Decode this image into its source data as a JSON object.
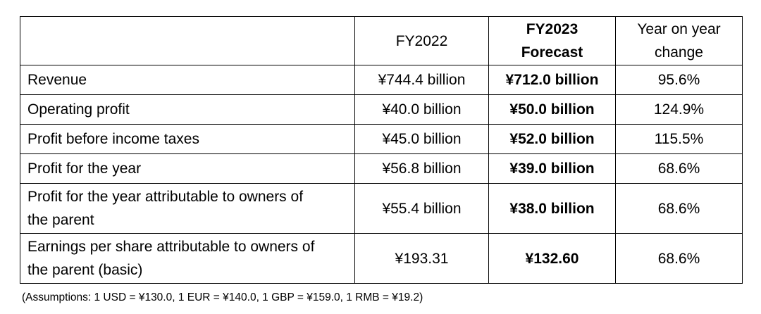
{
  "table": {
    "headers": {
      "label": "",
      "fy2022": "FY2022",
      "fy2023_line1": "FY2023",
      "fy2023_line2": "Forecast",
      "yoy_line1": "Year on year",
      "yoy_line2": "change"
    },
    "rows": [
      {
        "label": "Revenue",
        "fy2022": "¥744.4 billion",
        "fy2023": "¥712.0 billion",
        "yoy": "95.6%"
      },
      {
        "label": "Operating profit",
        "fy2022": "¥40.0 billion",
        "fy2023": "¥50.0 billion",
        "yoy": "124.9%"
      },
      {
        "label": "Profit before income taxes",
        "fy2022": "¥45.0 billion",
        "fy2023": "¥52.0 billion",
        "yoy": "115.5%"
      },
      {
        "label": "Profit for the year",
        "fy2022": "¥56.8 billion",
        "fy2023": "¥39.0 billion",
        "yoy": "68.6%"
      },
      {
        "label_line1": "Profit for the year attributable to owners of",
        "label_line2": "the parent",
        "fy2022": "¥55.4 billion",
        "fy2023": "¥38.0 billion",
        "yoy": "68.6%"
      },
      {
        "label_line1": "Earnings per share attributable to owners of",
        "label_line2": "the parent (basic)",
        "fy2022": "¥193.31",
        "fy2023": "¥132.60",
        "yoy": "68.6%"
      }
    ]
  },
  "note": "(Assumptions: 1 USD = ¥130.0, 1 EUR = ¥140.0, 1 GBP = ¥159.0, 1 RMB = ¥19.2)"
}
